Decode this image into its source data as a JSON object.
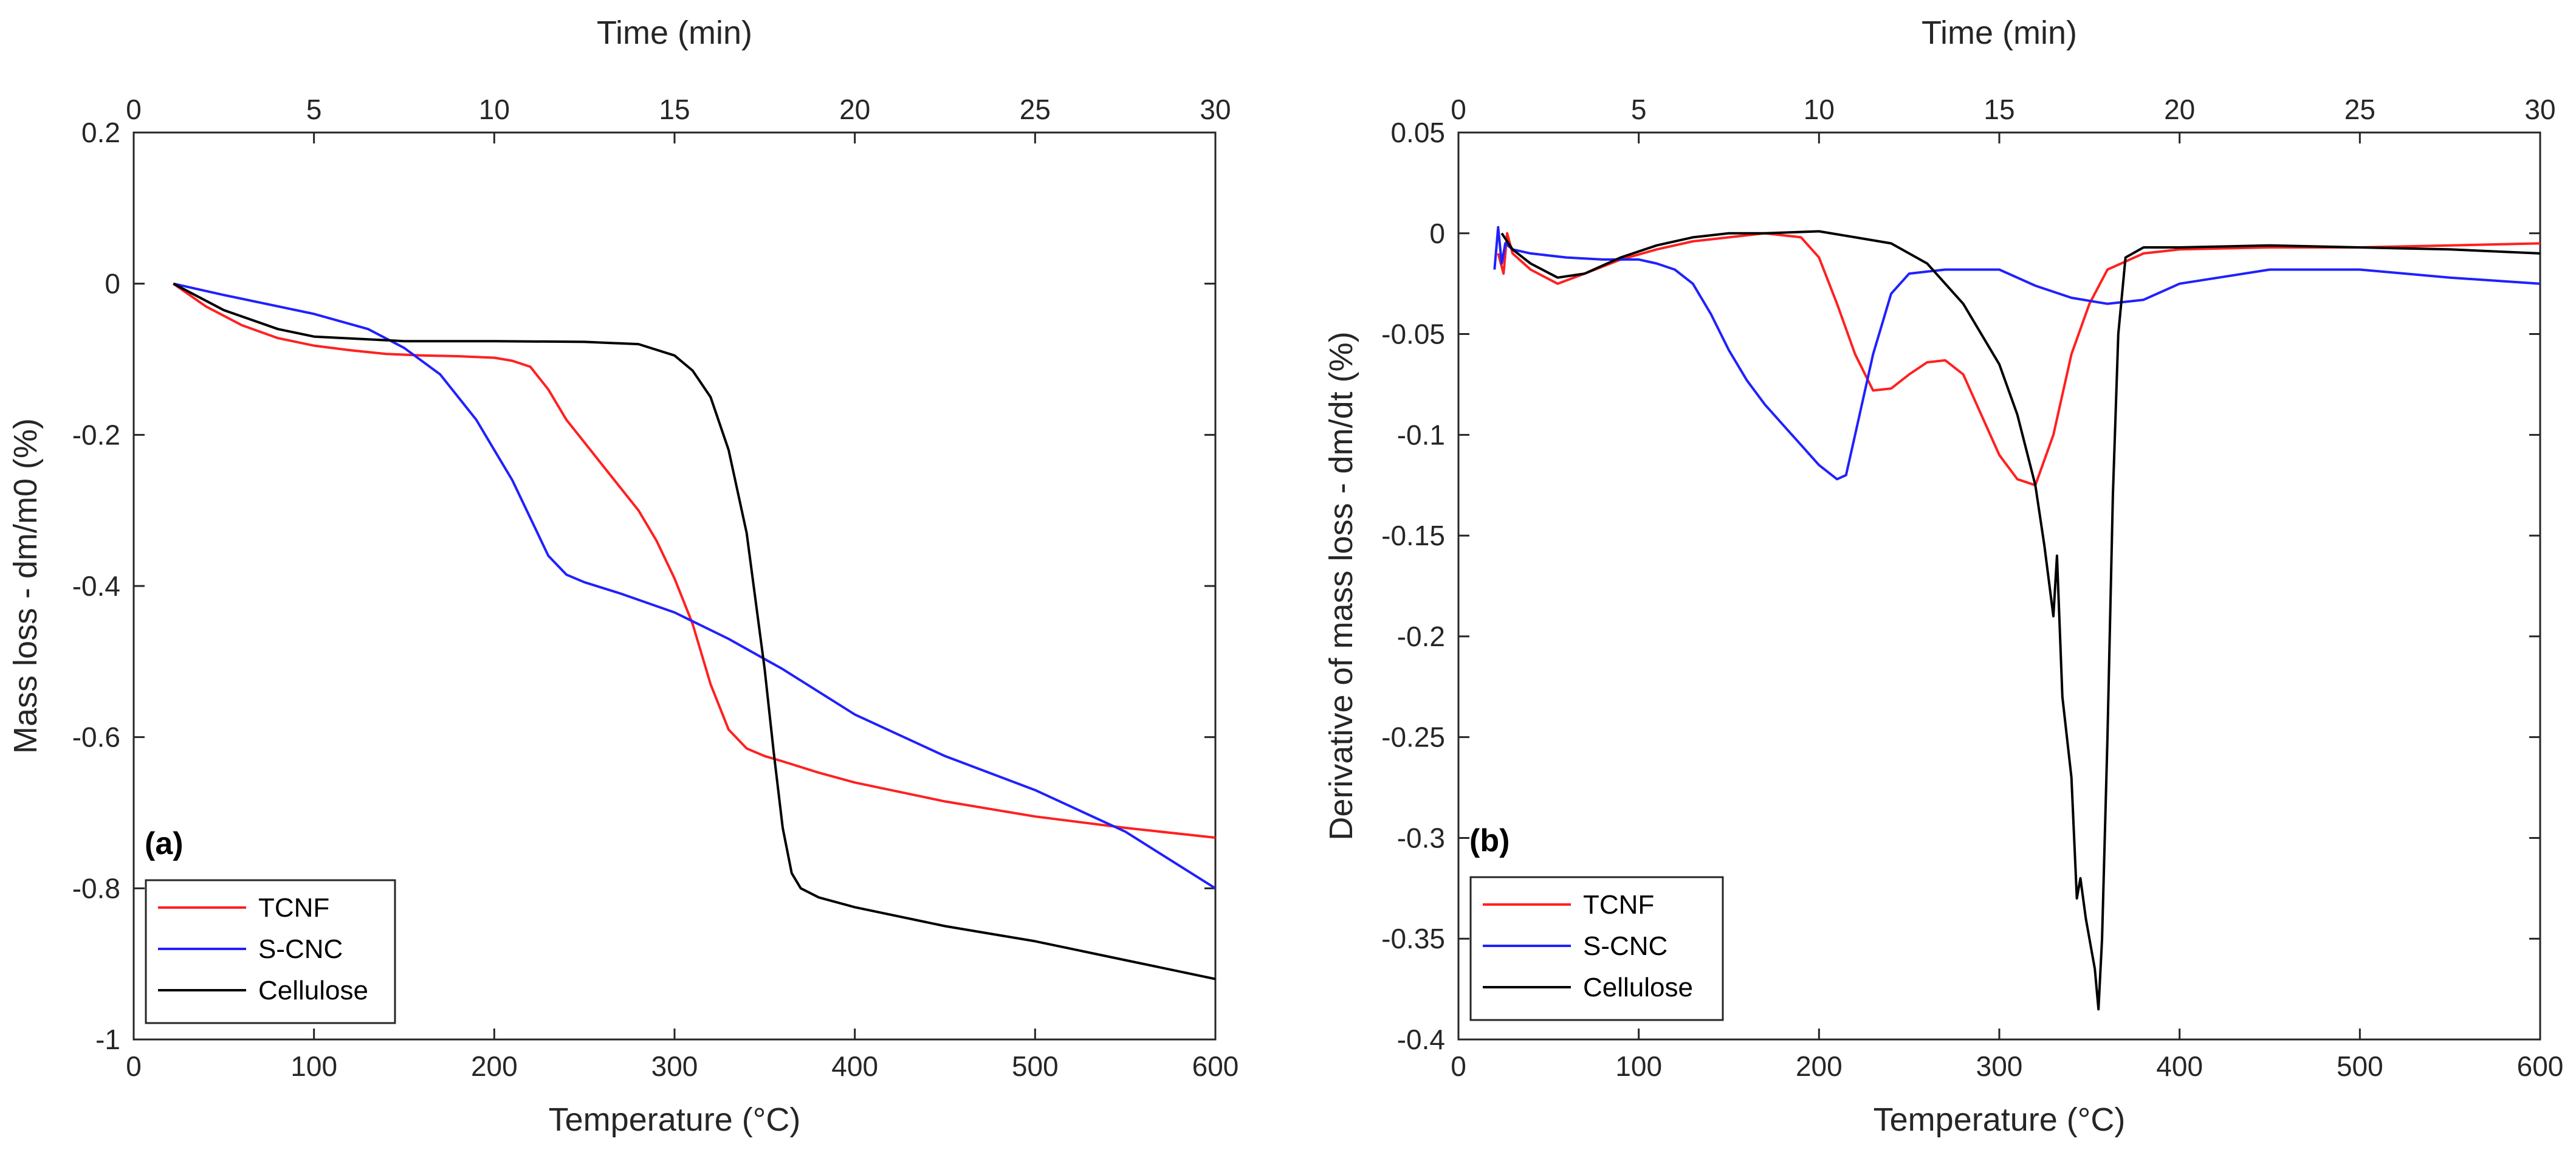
{
  "chart_data": [
    {
      "type": "line",
      "panel_label": "(a)",
      "xlabel": "Temperature (°C)",
      "ylabel": "Mass loss - dm/m0 (%)",
      "top_xlabel": "Time (min)",
      "xlim": [
        0,
        600
      ],
      "ylim": [
        -1,
        0.2
      ],
      "top_xlim": [
        0,
        30
      ],
      "x_ticks": [
        "0",
        "100",
        "200",
        "300",
        "400",
        "500",
        "600"
      ],
      "y_ticks": [
        "-1",
        "-0.8",
        "-0.6",
        "-0.4",
        "-0.2",
        "0",
        "0.2"
      ],
      "top_ticks": [
        "0",
        "5",
        "10",
        "15",
        "20",
        "25",
        "30"
      ],
      "grid": false,
      "legend_position": "bottom-left",
      "series": [
        {
          "name": "TCNF",
          "color": "#ff2020",
          "x": [
            22,
            40,
            60,
            80,
            100,
            120,
            140,
            160,
            180,
            200,
            210,
            220,
            230,
            240,
            250,
            260,
            270,
            280,
            290,
            300,
            310,
            320,
            330,
            340,
            350,
            360,
            380,
            400,
            450,
            500,
            550,
            600
          ],
          "y": [
            0,
            -0.03,
            -0.055,
            -0.072,
            -0.082,
            -0.088,
            -0.093,
            -0.095,
            -0.096,
            -0.098,
            -0.102,
            -0.11,
            -0.14,
            -0.18,
            -0.21,
            -0.24,
            -0.27,
            -0.3,
            -0.34,
            -0.39,
            -0.45,
            -0.53,
            -0.59,
            -0.615,
            -0.625,
            -0.632,
            -0.647,
            -0.66,
            -0.685,
            -0.705,
            -0.72,
            -0.733
          ]
        },
        {
          "name": "S-CNC",
          "color": "#2020ff",
          "x": [
            22,
            50,
            100,
            130,
            150,
            170,
            190,
            200,
            210,
            220,
            230,
            240,
            250,
            270,
            300,
            330,
            360,
            400,
            450,
            500,
            550,
            600
          ],
          "y": [
            0,
            -0.015,
            -0.04,
            -0.06,
            -0.085,
            -0.12,
            -0.18,
            -0.22,
            -0.26,
            -0.31,
            -0.36,
            -0.385,
            -0.395,
            -0.41,
            -0.435,
            -0.47,
            -0.51,
            -0.57,
            -0.625,
            -0.67,
            -0.725,
            -0.8
          ]
        },
        {
          "name": "Cellulose",
          "color": "#000000",
          "x": [
            22,
            50,
            80,
            100,
            150,
            200,
            250,
            280,
            300,
            310,
            320,
            330,
            340,
            345,
            350,
            355,
            360,
            365,
            370,
            380,
            400,
            450,
            500,
            550,
            600
          ],
          "y": [
            0,
            -0.035,
            -0.06,
            -0.07,
            -0.076,
            -0.076,
            -0.077,
            -0.08,
            -0.095,
            -0.115,
            -0.15,
            -0.22,
            -0.33,
            -0.42,
            -0.51,
            -0.62,
            -0.72,
            -0.78,
            -0.8,
            -0.812,
            -0.825,
            -0.85,
            -0.87,
            -0.895,
            -0.92
          ]
        }
      ]
    },
    {
      "type": "line",
      "panel_label": "(b)",
      "xlabel": "Temperature (°C)",
      "ylabel": "Derivative of mass loss - dm/dt (%)",
      "top_xlabel": "Time (min)",
      "xlim": [
        0,
        600
      ],
      "ylim": [
        -0.4,
        0.05
      ],
      "top_xlim": [
        0,
        30
      ],
      "x_ticks": [
        "0",
        "100",
        "200",
        "300",
        "400",
        "500",
        "600"
      ],
      "y_ticks": [
        "-0.4",
        "-0.35",
        "-0.3",
        "-0.25",
        "-0.2",
        "-0.15",
        "-0.1",
        "-0.05",
        "0",
        "0.05"
      ],
      "top_ticks": [
        "0",
        "5",
        "10",
        "15",
        "20",
        "25",
        "30"
      ],
      "grid": false,
      "legend_position": "bottom-left",
      "series": [
        {
          "name": "TCNF",
          "color": "#ff2020",
          "x": [
            22,
            25,
            27,
            30,
            40,
            55,
            70,
            90,
            110,
            130,
            150,
            170,
            190,
            200,
            210,
            220,
            230,
            240,
            250,
            260,
            270,
            280,
            290,
            300,
            310,
            320,
            330,
            340,
            350,
            360,
            380,
            400,
            450,
            500,
            550,
            600
          ],
          "y": [
            -0.01,
            -0.02,
            0,
            -0.01,
            -0.018,
            -0.025,
            -0.02,
            -0.013,
            -0.008,
            -0.004,
            -0.002,
            0,
            -0.002,
            -0.012,
            -0.035,
            -0.06,
            -0.078,
            -0.077,
            -0.07,
            -0.064,
            -0.063,
            -0.07,
            -0.09,
            -0.11,
            -0.122,
            -0.125,
            -0.1,
            -0.06,
            -0.035,
            -0.018,
            -0.01,
            -0.008,
            -0.007,
            -0.007,
            -0.006,
            -0.005
          ]
        },
        {
          "name": "S-CNC",
          "color": "#2020ff",
          "x": [
            20,
            22,
            24,
            26,
            30,
            40,
            60,
            80,
            100,
            110,
            120,
            130,
            140,
            150,
            160,
            170,
            180,
            190,
            200,
            210,
            215,
            220,
            230,
            240,
            250,
            270,
            300,
            320,
            340,
            360,
            380,
            400,
            450,
            500,
            550,
            600
          ],
          "y": [
            -0.018,
            0.003,
            -0.015,
            -0.005,
            -0.008,
            -0.01,
            -0.012,
            -0.013,
            -0.013,
            -0.015,
            -0.018,
            -0.025,
            -0.04,
            -0.058,
            -0.073,
            -0.085,
            -0.095,
            -0.105,
            -0.115,
            -0.122,
            -0.12,
            -0.1,
            -0.06,
            -0.03,
            -0.02,
            -0.018,
            -0.018,
            -0.026,
            -0.032,
            -0.035,
            -0.033,
            -0.025,
            -0.018,
            -0.018,
            -0.022,
            -0.025
          ]
        },
        {
          "name": "Cellulose",
          "color": "#000000",
          "x": [
            24,
            30,
            40,
            55,
            70,
            90,
            110,
            130,
            150,
            170,
            200,
            220,
            240,
            260,
            280,
            300,
            310,
            320,
            325,
            330,
            332,
            335,
            340,
            343,
            345,
            348,
            350,
            353,
            355,
            357,
            360,
            363,
            366,
            370,
            380,
            400,
            450,
            500,
            550,
            600
          ],
          "y": [
            0,
            -0.008,
            -0.015,
            -0.022,
            -0.02,
            -0.012,
            -0.006,
            -0.002,
            0,
            0,
            0.001,
            -0.002,
            -0.005,
            -0.015,
            -0.035,
            -0.065,
            -0.09,
            -0.125,
            -0.155,
            -0.19,
            -0.16,
            -0.23,
            -0.27,
            -0.33,
            -0.32,
            -0.34,
            -0.35,
            -0.365,
            -0.385,
            -0.35,
            -0.25,
            -0.13,
            -0.05,
            -0.012,
            -0.007,
            -0.007,
            -0.006,
            -0.007,
            -0.008,
            -0.01
          ]
        }
      ]
    }
  ]
}
